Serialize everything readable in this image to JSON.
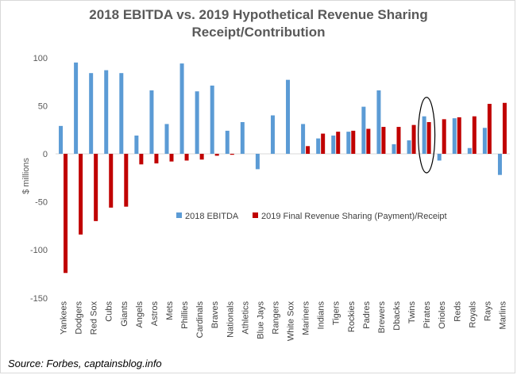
{
  "title_lines": [
    "2018 EBITDA vs. 2019 Hypothetical Revenue Sharing",
    "Receipt/Contribution"
  ],
  "source": "Source: Forbes, captainsblog.info",
  "colors": {
    "ebitda": "#5b9bd5",
    "revenue": "#c00000",
    "axis": "#d9d9d9",
    "text": "#595959"
  },
  "chart_data": {
    "type": "bar",
    "title": "2018 EBITDA vs. 2019 Hypothetical Revenue Sharing Receipt/Contribution",
    "xlabel": "",
    "ylabel": "$ millions",
    "ylim": [
      -150,
      100
    ],
    "yticks": [
      -150,
      -100,
      -50,
      0,
      50,
      100
    ],
    "grid": false,
    "legend_position": "center-right",
    "highlight": {
      "category": "Pirates",
      "shape": "ellipse"
    },
    "categories": [
      "Yankees",
      "Dodgers",
      "Red Sox",
      "Cubs",
      "Giants",
      "Angels",
      "Astros",
      "Mets",
      "Phillies",
      "Cardinals",
      "Braves",
      "Nationals",
      "Athletics",
      "Blue Jays",
      "Rangers",
      "White Sox",
      "Mariners",
      "Indians",
      "Tigers",
      "Rockies",
      "Padres",
      "Brewers",
      "Dbacks",
      "Twins",
      "Pirates",
      "Orioles",
      "Reds",
      "Royals",
      "Rays",
      "Marlins"
    ],
    "series": [
      {
        "name": "2018 EBITDA",
        "values": [
          29,
          95,
          84,
          87,
          84,
          19,
          66,
          31,
          94,
          65,
          71,
          24,
          33,
          -16,
          40,
          77,
          31,
          16,
          19,
          23,
          49,
          66,
          10,
          14,
          39,
          -7,
          37,
          6,
          27,
          -22
        ]
      },
      {
        "name": "2019 Final Revenue Sharing (Payment)/Receipt",
        "values": [
          -124,
          -84,
          -70,
          -56,
          -55,
          -11,
          -10,
          -8,
          -7,
          -6,
          -2,
          -1,
          0,
          0,
          0,
          0,
          8,
          21,
          23,
          24,
          26,
          28,
          28,
          30,
          33,
          36,
          38,
          39,
          52,
          53
        ]
      }
    ]
  }
}
